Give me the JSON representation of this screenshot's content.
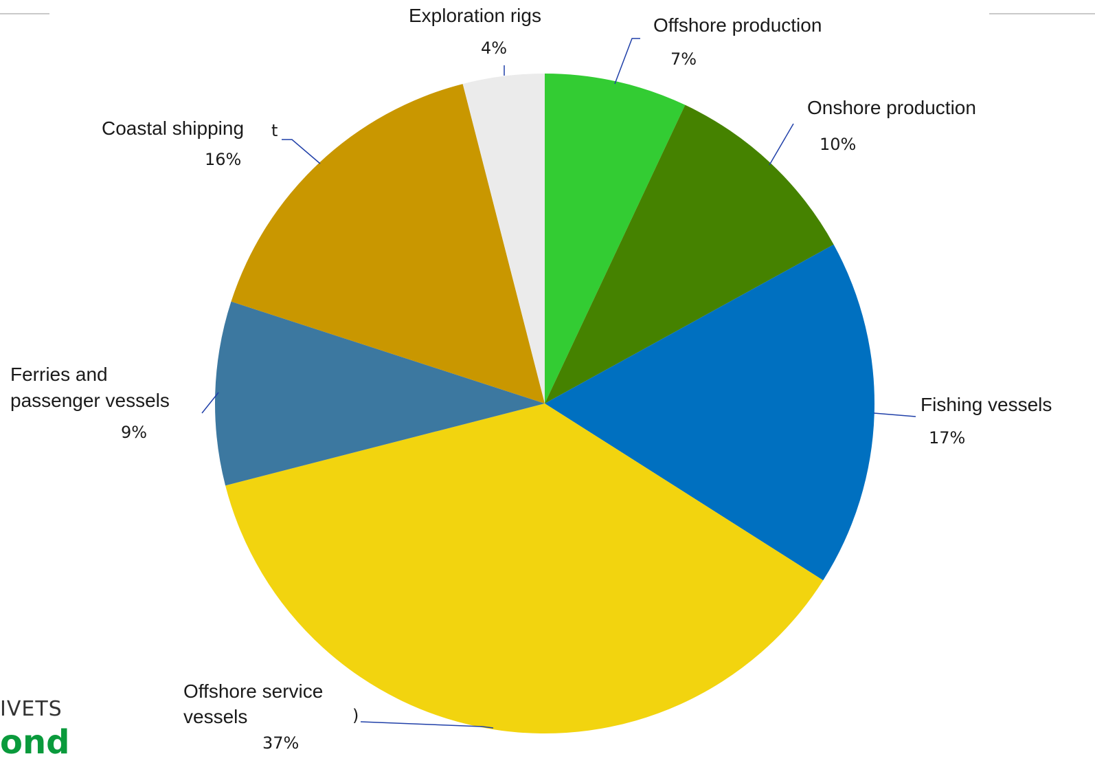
{
  "chart_data": {
    "type": "pie",
    "start_angle_deg": 0,
    "direction": "clockwise",
    "slices": [
      {
        "label": "Offshore production",
        "value": 7,
        "pct_label": "7%",
        "color": "#33cc33"
      },
      {
        "label": "Onshore production",
        "value": 10,
        "pct_label": "10%",
        "color": "#458200"
      },
      {
        "label": "Fishing vessels",
        "value": 17,
        "pct_label": "17%",
        "color": "#0070c0"
      },
      {
        "label": "Offshore service vessels",
        "value": 37,
        "pct_label": "37%",
        "color": "#f2d40f"
      },
      {
        "label": "Ferries and passenger vessels",
        "value": 9,
        "pct_label": "9%",
        "color": "#3c78a0"
      },
      {
        "label": "Coastal shipping",
        "value": 16,
        "pct_label": "16%",
        "color": "#c99700"
      },
      {
        "label": "Exploration rigs",
        "value": 4,
        "pct_label": "4%",
        "color": "#ebebeb"
      }
    ]
  },
  "logo": {
    "line1": "IVETS",
    "line2": "ond"
  },
  "artifacts": {
    "coastal_fragment": "t",
    "offshore_service_fragment": ")"
  }
}
